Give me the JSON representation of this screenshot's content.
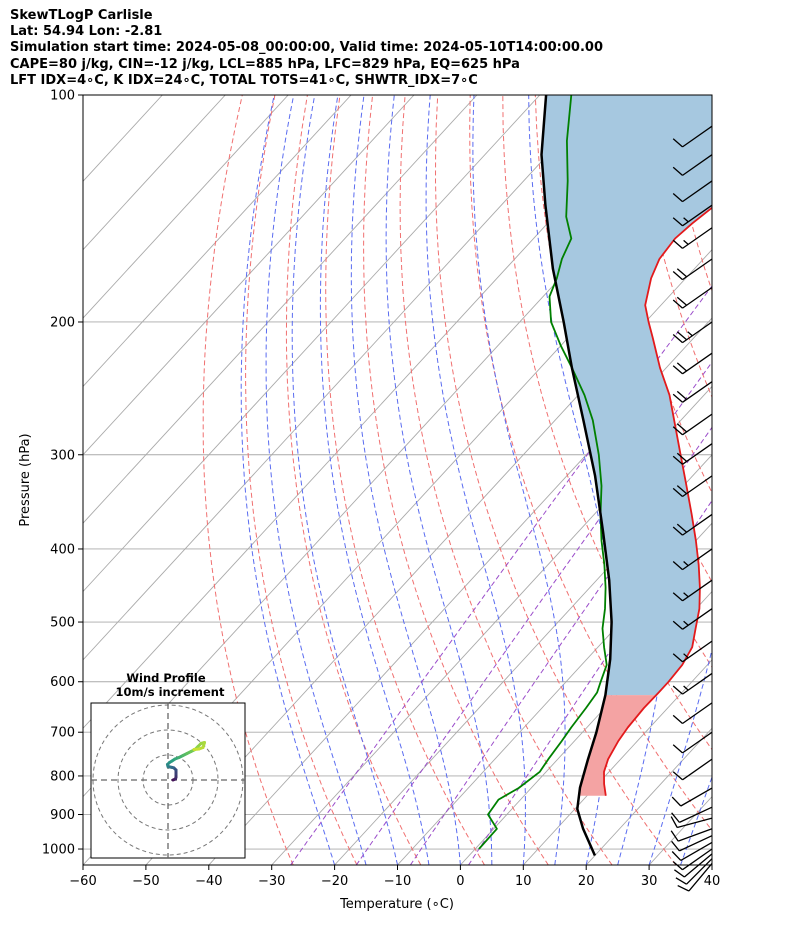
{
  "header": {
    "line1": "SkewTLogP Carlisle",
    "line2": "Lat: 54.94   Lon: -2.81",
    "line3": "Simulation start time: 2024-05-08_00:00:00, Valid time: 2024-05-10T14:00:00.00",
    "line4": "CAPE=80 j/kg, CIN=-12 j/kg, LCL=885 hPa, LFC=829 hPa, EQ=625 hPa",
    "line5": "LFT IDX=4∘C, K IDX=24∘C, TOTAL TOTS=41∘C, SHWTR_IDX=7∘C"
  },
  "colors": {
    "temperature": "#e31a1c",
    "dewpoint": "#008000",
    "parcel": "#000000",
    "cape_fill": "#a6c8e0",
    "cin_fill": "#f4a3a3",
    "dry_adiabat": "#f07070",
    "moist_adiabat": "#5a6cf0",
    "mixing_ratio": "#9b4dca",
    "isotherm": "#aaaaaa",
    "isobar": "#aaaaaa"
  },
  "chart_data": {
    "type": "line",
    "title": "",
    "xlabel": "Temperature (∘C)",
    "ylabel": "Pressure (hPa)",
    "xlim": [
      -60,
      40
    ],
    "ylim": [
      1050,
      100
    ],
    "y_scale": "log",
    "grid": true,
    "x_ticks": [
      -60,
      -50,
      -40,
      -30,
      -20,
      -10,
      0,
      10,
      20,
      30,
      40
    ],
    "y_ticks": [
      100,
      200,
      300,
      400,
      500,
      600,
      700,
      800,
      900,
      1000
    ],
    "series": [
      {
        "role": "temperature",
        "pressure": [
          850,
          820,
          790,
          760,
          720,
          690,
          650,
          620,
          600,
          570,
          540,
          510,
          480,
          450,
          420,
          390,
          360,
          330,
          300,
          275,
          250,
          230,
          210,
          200,
          190,
          175,
          165,
          155,
          148,
          140,
          130,
          120,
          110,
          100
        ],
        "values": [
          13.0,
          11.0,
          9.2,
          8.0,
          7.0,
          6.5,
          6.2,
          6.3,
          6.3,
          6.0,
          5.0,
          2.8,
          0.5,
          -2.5,
          -6.0,
          -10.0,
          -14.5,
          -19.5,
          -25.0,
          -30.0,
          -35.5,
          -41.0,
          -46.5,
          -49.5,
          -52.5,
          -55.5,
          -57.0,
          -57.5,
          -57.0,
          -56.0,
          -55.0,
          -55.0,
          -55.5,
          -56.0
        ]
      },
      {
        "role": "dewpoint",
        "pressure": [
          1000,
          940,
          900,
          860,
          830,
          790,
          760,
          720,
          690,
          650,
          620,
          600,
          570,
          540,
          510,
          480,
          450,
          420,
          390,
          360,
          330,
          300,
          270,
          250,
          230,
          215,
          200,
          185,
          175,
          165,
          155,
          145,
          130,
          115,
          100
        ],
        "values": [
          0.6,
          0.5,
          -3.0,
          -3.5,
          -2.0,
          -1.0,
          -1.5,
          -2.0,
          -2.5,
          -3.0,
          -3.5,
          -4.5,
          -6.0,
          -9.0,
          -12.0,
          -14.5,
          -17.5,
          -21.0,
          -25.0,
          -29.0,
          -33.0,
          -38.0,
          -44.0,
          -49.0,
          -55.0,
          -60.0,
          -65.0,
          -69.0,
          -70.5,
          -72.5,
          -74.0,
          -78.0,
          -83.0,
          -89.0,
          -95.0
        ]
      },
      {
        "role": "parcel",
        "pressure": [
          1020,
          940,
          885,
          829,
          760,
          700,
          625,
          560,
          500,
          440,
          380,
          320,
          270,
          230,
          200,
          170,
          140,
          120,
          100
        ],
        "values": [
          20.0,
          14.2,
          10.4,
          7.7,
          4.8,
          2.2,
          -1.8,
          -6.3,
          -11.5,
          -18.0,
          -26.0,
          -35.5,
          -45.5,
          -55.0,
          -63.0,
          -72.5,
          -83.0,
          -91.0,
          -99.0
        ]
      }
    ],
    "wind_barbs": {
      "pressure": [
        1045,
        1030,
        1015,
        1000,
        980,
        960,
        940,
        910,
        880,
        830,
        760,
        700,
        640,
        585,
        530,
        480,
        440,
        400,
        360,
        320,
        290,
        265,
        240,
        220,
        200,
        180,
        165,
        150,
        140,
        130,
        120,
        110
      ],
      "speed_kt": [
        10,
        10,
        10,
        10,
        10,
        10,
        10,
        10,
        10,
        10,
        10,
        10,
        10,
        15,
        15,
        15,
        15,
        15,
        20,
        20,
        20,
        20,
        20,
        20,
        25,
        20,
        20,
        15,
        15,
        10,
        10,
        10
      ],
      "direction_deg": [
        220,
        225,
        230,
        235,
        240,
        245,
        250,
        255,
        245,
        240,
        235,
        235,
        235,
        235,
        235,
        235,
        235,
        235,
        235,
        235,
        235,
        235,
        235,
        235,
        235,
        235,
        235,
        235,
        235,
        235,
        235,
        235
      ]
    },
    "inset": {
      "title": "Wind Profile",
      "subtitle": "10m/s increment",
      "rings_ms": [
        10,
        20,
        30
      ],
      "hodograph_u": [
        5.0,
        7.5,
        8.0,
        8.0,
        8.0,
        6.0,
        4.5,
        2.0,
        0.0,
        -0.5,
        1.5,
        4.0,
        7.0,
        11.0,
        15.0,
        19.0,
        23.0,
        27.0,
        30.0,
        33.0,
        36.5,
        35.0,
        31.0,
        26.0
      ],
      "hodograph_v": [
        0.0,
        1.0,
        3.0,
        6.0,
        10.0,
        12.0,
        12.5,
        13.0,
        13.5,
        15.5,
        17.5,
        19.0,
        21.0,
        22.5,
        24.5,
        26.5,
        28.5,
        30.5,
        33.5,
        36.5,
        37.5,
        32.5,
        31.0,
        30.5
      ]
    }
  }
}
